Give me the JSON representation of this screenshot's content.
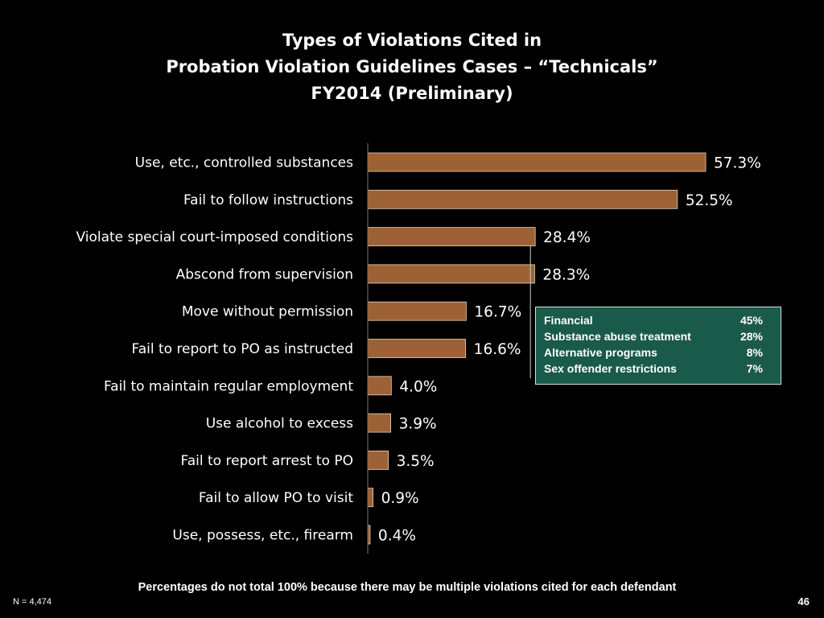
{
  "title": {
    "line1": "Types of Violations Cited in",
    "line2": "Probation Violation Guidelines Cases – “Technicals”",
    "line3": "FY2014 (Preliminary)"
  },
  "chart_data": {
    "type": "bar",
    "orientation": "horizontal",
    "categories": [
      "Use, etc., controlled substances",
      "Fail to follow instructions",
      "Violate special court-imposed conditions",
      "Abscond from supervision",
      "Move without permission",
      "Fail to report to PO as instructed",
      "Fail to maintain regular employment",
      "Use alcohol to excess",
      "Fail to report arrest to PO",
      "Fail to allow PO to visit",
      "Use, possess, etc., firearm"
    ],
    "values": [
      57.3,
      52.5,
      28.4,
      28.3,
      16.7,
      16.6,
      4.0,
      3.9,
      3.5,
      0.9,
      0.4
    ],
    "value_labels": [
      "57.3%",
      "52.5%",
      "28.4%",
      "28.3%",
      "16.7%",
      "16.6%",
      "4.0%",
      "3.9%",
      "3.5%",
      "0.9%",
      "0.4%"
    ],
    "xlim": [
      0,
      60
    ],
    "bar_color": "#9c6236",
    "grid": false
  },
  "callout": {
    "items": [
      {
        "label": "Financial",
        "value": "45%"
      },
      {
        "label": "Substance abuse treatment",
        "value": "28%"
      },
      {
        "label": "Alternative programs",
        "value": "8%"
      },
      {
        "label": "Sex offender restrictions",
        "value": "7%"
      }
    ]
  },
  "footnote": "Percentages do not total 100% because there may be multiple violations cited for each defendant",
  "n_label": "N = 4,474",
  "page_number": "46"
}
